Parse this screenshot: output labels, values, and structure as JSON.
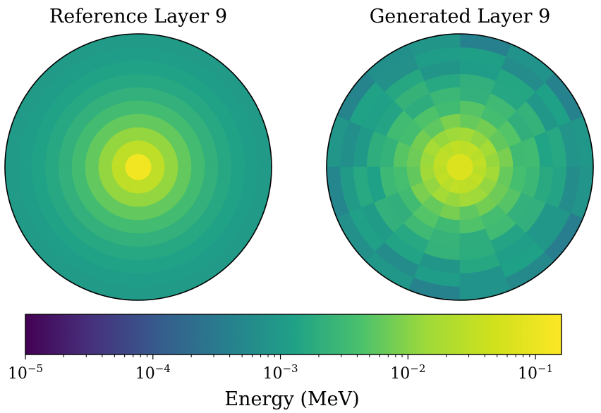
{
  "chart_data": [
    {
      "type": "heatmap",
      "geometry": "polar",
      "title": "Reference Layer 9",
      "rings": 10,
      "sectors": 16,
      "ring_values": [
        0.12,
        0.03,
        0.012,
        0.006,
        0.0035,
        0.0022,
        0.0016,
        0.0013,
        0.0011,
        0.001
      ],
      "sector_factors": [
        [
          1,
          1,
          1,
          1,
          1,
          1,
          1,
          1,
          1,
          1,
          1,
          1,
          1,
          1,
          1,
          1
        ]
      ]
    },
    {
      "type": "heatmap",
      "geometry": "polar",
      "title": "Generated Layer 9",
      "rings": 10,
      "sectors": 16,
      "ring_values": [
        0.065,
        0.03,
        0.014,
        0.007,
        0.004,
        0.0026,
        0.0018,
        0.0012,
        0.0009,
        0.0006
      ],
      "sector_factors": [
        [
          1,
          1,
          1,
          1,
          1,
          1,
          1,
          1,
          1,
          1,
          1,
          1,
          1,
          1,
          1,
          1
        ],
        [
          1.1,
          0.9,
          1.05,
          0.95,
          1.1,
          0.9,
          1.0,
          1.05,
          0.95,
          1.1,
          0.9,
          1.05,
          1.0,
          0.95,
          1.1,
          0.9
        ],
        [
          0.9,
          1.15,
          0.85,
          1.1,
          1.0,
          0.9,
          1.2,
          0.95,
          1.05,
          0.85,
          1.15,
          0.9,
          1.1,
          1.0,
          0.85,
          1.1
        ],
        [
          1.2,
          0.85,
          1.1,
          0.9,
          1.25,
          0.8,
          1.1,
          1.0,
          0.85,
          1.2,
          0.9,
          1.15,
          0.8,
          1.1,
          1.0,
          0.9
        ],
        [
          0.8,
          1.2,
          0.9,
          1.25,
          0.85,
          1.1,
          0.9,
          1.3,
          0.95,
          0.85,
          1.2,
          0.8,
          1.15,
          0.9,
          1.25,
          0.95
        ],
        [
          1.3,
          0.8,
          1.2,
          0.85,
          1.1,
          0.75,
          1.3,
          0.9,
          1.15,
          0.8,
          1.2,
          0.95,
          0.75,
          1.25,
          0.85,
          1.1
        ],
        [
          0.75,
          1.3,
          0.85,
          1.2,
          0.9,
          1.35,
          0.8,
          1.1,
          0.7,
          1.25,
          0.9,
          1.3,
          1.05,
          0.8,
          1.2,
          0.95
        ],
        [
          1.35,
          0.75,
          1.25,
          0.9,
          0.7,
          1.3,
          1.0,
          0.8,
          1.4,
          0.85,
          1.15,
          0.7,
          1.3,
          0.95,
          0.75,
          1.2
        ],
        [
          0.9,
          1.4,
          0.7,
          1.3,
          1.2,
          0.8,
          1.45,
          0.75,
          1.1,
          1.35,
          0.7,
          1.2,
          0.85,
          1.4,
          1.0,
          0.7
        ],
        [
          1.5,
          0.7,
          1.3,
          0.65,
          1.4,
          1.1,
          0.75,
          1.45,
          0.8,
          1.2,
          1.5,
          0.7,
          1.3,
          0.9,
          0.6,
          1.35
        ]
      ]
    }
  ],
  "colorbar": {
    "label": "Energy (MeV)",
    "scale": "log",
    "range": [
      1e-05,
      0.16
    ],
    "colormap": "viridis",
    "ticks": [
      {
        "value": 1e-05,
        "base": "10",
        "exp": "−5"
      },
      {
        "value": 0.0001,
        "base": "10",
        "exp": "−4"
      },
      {
        "value": 0.001,
        "base": "10",
        "exp": "−3"
      },
      {
        "value": 0.01,
        "base": "10",
        "exp": "−2"
      },
      {
        "value": 0.1,
        "base": "10",
        "exp": "−1"
      }
    ]
  }
}
